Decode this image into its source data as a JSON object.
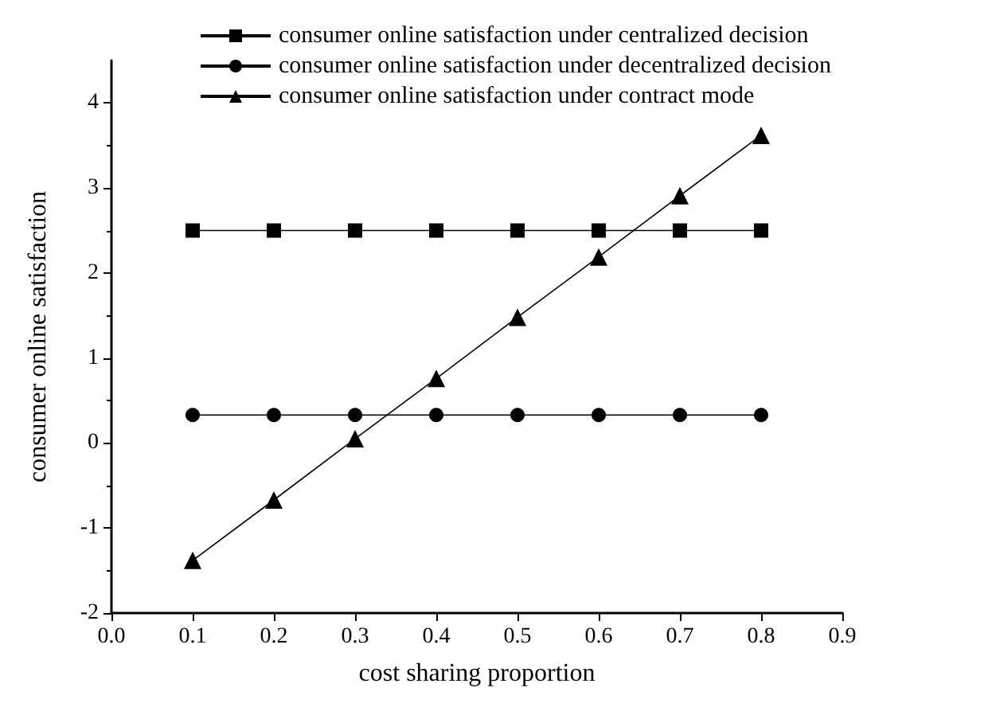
{
  "chart_data": {
    "type": "line",
    "xlabel": "cost sharing proportion",
    "ylabel": "consumer online satisfaction",
    "x": [
      0.1,
      0.2,
      0.3,
      0.4,
      0.5,
      0.6,
      0.7,
      0.8
    ],
    "series": [
      {
        "name": "consumer online satisfaction under centralized decision",
        "color": "#000000",
        "marker": "square",
        "values": [
          2.5,
          2.5,
          2.5,
          2.5,
          2.5,
          2.5,
          2.5,
          2.5
        ]
      },
      {
        "name": "consumer online satisfaction under decentralized decision",
        "color": "#000000",
        "marker": "circle",
        "values": [
          0.33,
          0.33,
          0.33,
          0.33,
          0.33,
          0.33,
          0.33,
          0.33
        ]
      },
      {
        "name": "consumer online satisfaction under contract mode",
        "color": "#000000",
        "marker": "triangle",
        "values": [
          -1.38,
          -0.67,
          0.05,
          0.76,
          1.48,
          2.19,
          2.91,
          3.62
        ]
      }
    ],
    "xlim": [
      0,
      0.9
    ],
    "xticks": [
      {
        "value": 0,
        "label": "0.0"
      },
      0.1,
      0.2,
      0.3,
      0.4,
      0.5,
      0.6,
      0.7,
      0.8,
      0.9
    ],
    "ylim": [
      -2,
      4.5
    ],
    "yticks": [
      -2,
      -1,
      0,
      1,
      2,
      3,
      4
    ],
    "grid": false,
    "legend": "top",
    "line_style": "solid"
  }
}
